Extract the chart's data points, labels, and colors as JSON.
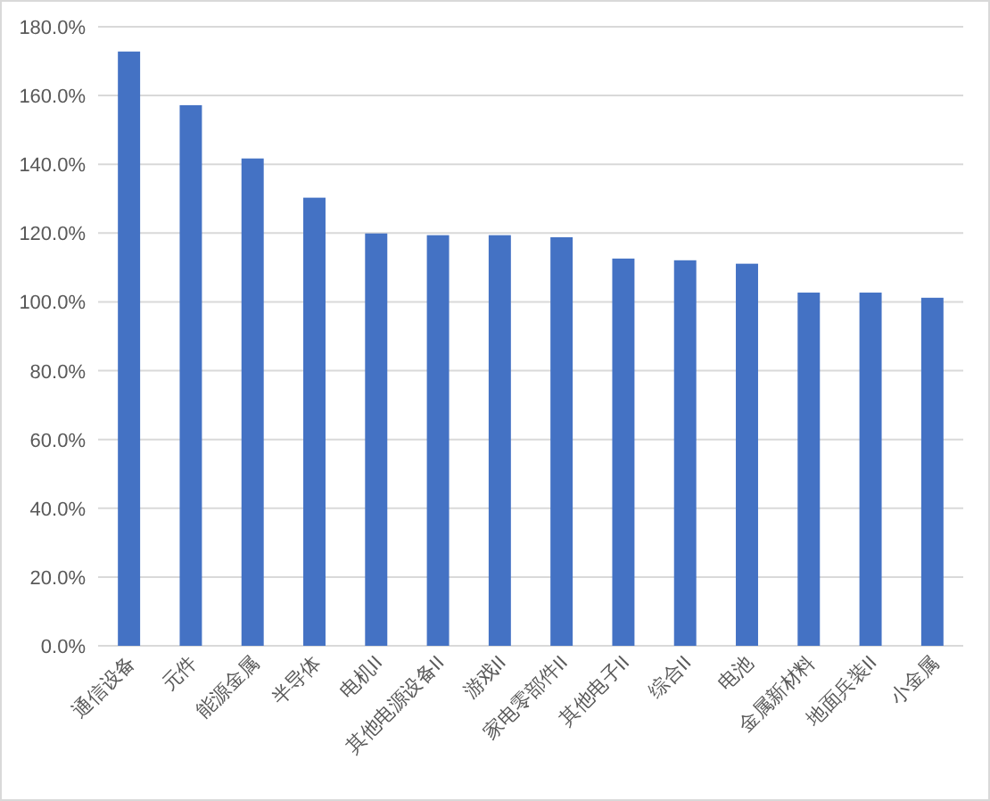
{
  "chart_data": {
    "type": "bar",
    "categories": [
      "通信设备",
      "元件",
      "能源金属",
      "半导体",
      "电机II",
      "其他电源设备II",
      "游戏II",
      "家电零部件II",
      "其他电子II",
      "综合II",
      "电池",
      "金属新材料",
      "地面兵装II",
      "小金属"
    ],
    "values": [
      172.8,
      157.2,
      141.7,
      130.3,
      119.9,
      119.4,
      119.4,
      118.8,
      112.6,
      112.1,
      111.1,
      102.7,
      102.7,
      101.2
    ],
    "color": "#4472c4",
    "ylim": [
      0,
      180
    ],
    "yticks": [
      {
        "value": 0,
        "label": "0.0%"
      },
      {
        "value": 20,
        "label": "20.0%"
      },
      {
        "value": 40,
        "label": "40.0%"
      },
      {
        "value": 60,
        "label": "60.0%"
      },
      {
        "value": 80,
        "label": "80.0%"
      },
      {
        "value": 100,
        "label": "100.0%"
      },
      {
        "value": 120,
        "label": "120.0%"
      },
      {
        "value": 140,
        "label": "140.0%"
      },
      {
        "value": 160,
        "label": "160.0%"
      },
      {
        "value": 180,
        "label": "180.0%"
      }
    ],
    "grid": "y"
  }
}
